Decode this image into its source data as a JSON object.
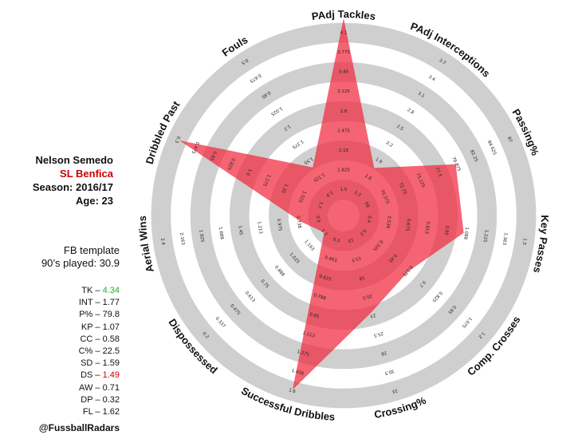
{
  "player": {
    "name": "Nelson Semedo",
    "team": "SL Benfica",
    "season": "Season: 2016/17",
    "age": "Age: 23",
    "template": "FB template",
    "nineties": "90’s played: 30.9"
  },
  "stats": [
    {
      "label": "TK",
      "value": "4.34",
      "status": "good"
    },
    {
      "label": "INT",
      "value": "1.77",
      "status": "normal"
    },
    {
      "label": "P%",
      "value": "79.8",
      "status": "normal"
    },
    {
      "label": "KP",
      "value": "1.07",
      "status": "normal"
    },
    {
      "label": "CC",
      "value": "0.58",
      "status": "normal"
    },
    {
      "label": "C%",
      "value": "22.5",
      "status": "normal"
    },
    {
      "label": "SD",
      "value": "1.59",
      "status": "normal"
    },
    {
      "label": "DS",
      "value": "1.49",
      "status": "bad"
    },
    {
      "label": "AW",
      "value": "0.71",
      "status": "normal"
    },
    {
      "label": "DP",
      "value": "0.32",
      "status": "normal"
    },
    {
      "label": "FL",
      "value": "1.62",
      "status": "normal"
    }
  ],
  "handle": "@FussballRadars",
  "colors": {
    "ring": "#cfcfcf",
    "fill": "#f0283c",
    "team": "#cc0000",
    "good": "#22b022",
    "bad": "#cc0000"
  },
  "chart_data": {
    "type": "radar",
    "axes": [
      {
        "label": "PAdj Tackles",
        "ticks": [
          "1.5",
          "1.825",
          "2.15",
          "2.475",
          "2.8",
          "3.125",
          "3.45",
          "3.775",
          "4.1"
        ],
        "value": 4.34
      },
      {
        "label": "PAdj Interceptions",
        "ticks": [
          "1.3",
          "1.6",
          "1.9",
          "2.2",
          "2.5",
          "2.8",
          "3.1",
          "3.4",
          "3.7"
        ],
        "value": 1.77
      },
      {
        "label": "Passing%",
        "ticks": [
          "68",
          "70.375",
          "72.75",
          "75.125",
          "77.5",
          "79.875",
          "82.25",
          "84.625",
          "87"
        ],
        "value": 79.8
      },
      {
        "label": "Key Passes",
        "ticks": [
          "0.4",
          "0.538",
          "0.675",
          "0.813",
          "0.95",
          "1.088",
          "1.225",
          "1.363",
          "1.5"
        ],
        "value": 1.07
      },
      {
        "label": "Comp. Crosses",
        "ticks": [
          "0.2",
          "0.325",
          "0.45",
          "0.575",
          "0.7",
          "0.825",
          "0.95",
          "1.075",
          "1.2"
        ],
        "value": 0.58
      },
      {
        "label": "Crossing%",
        "ticks": [
          "13",
          "15.5",
          "18",
          "20.5",
          "23",
          "25.5",
          "28",
          "30.5",
          "33"
        ],
        "value": 22.5
      },
      {
        "label": "Successful Dribbles",
        "ticks": [
          "0.3",
          "0.463",
          "0.625",
          "0.788",
          "0.95",
          "1.113",
          "1.275",
          "1.438",
          "1.6"
        ],
        "value": 1.59
      },
      {
        "label": "Dispossessed",
        "reversed": true,
        "ticks": [
          "1.3",
          "1.163",
          "1.025",
          "0.888",
          "0.75",
          "0.613",
          "0.475",
          "0.337",
          "0.2"
        ],
        "value": 1.49
      },
      {
        "label": "Aerial Wins",
        "ticks": [
          "0.5",
          "0.738",
          "0.975",
          "1.213",
          "1.45",
          "1.688",
          "1.925",
          "2.163",
          "2.4"
        ],
        "value": 0.71
      },
      {
        "label": "Dribbled Past",
        "reversed": true,
        "ticks": [
          "1.7",
          "1.525",
          "1.35",
          "1.175",
          "1.0",
          "0.825",
          "0.65",
          "0.475",
          "0.3"
        ],
        "value": 0.32
      },
      {
        "label": "Fouls",
        "reversed": true,
        "ticks": [
          "1.9",
          "1.725",
          "1.55",
          "1.375",
          "1.2",
          "1.025",
          "0.85",
          "0.675",
          "0.5"
        ],
        "value": 1.62
      }
    ],
    "grid": true,
    "legend": "none"
  }
}
